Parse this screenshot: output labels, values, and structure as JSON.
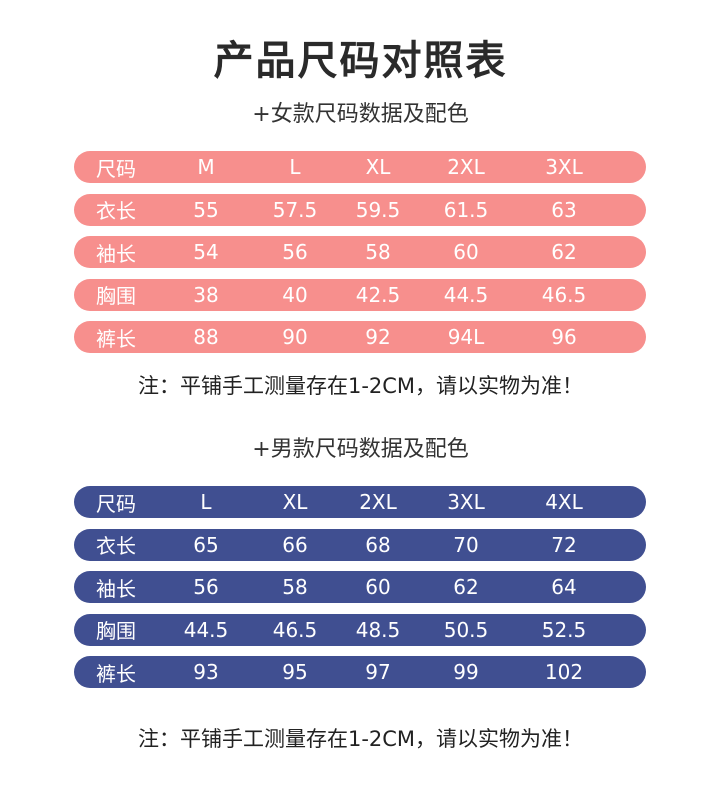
{
  "title": "产品尺码对照表",
  "women": {
    "heading": "+女款尺码数据及配色",
    "color": "#f78f8d",
    "rows": [
      [
        "尺码",
        "M",
        "L",
        "XL",
        "2XL",
        "3XL"
      ],
      [
        "衣长",
        "55",
        "57.5",
        "59.5",
        "61.5",
        "63"
      ],
      [
        "袖长",
        "54",
        "56",
        "58",
        "60",
        "62"
      ],
      [
        "胸围",
        "38",
        "40",
        "42.5",
        "44.5",
        "46.5"
      ],
      [
        "裤长",
        "88",
        "90",
        "92",
        "94L",
        "96"
      ]
    ],
    "note": "注：平铺手工测量存在1-2CM，请以实物为准！"
  },
  "men": {
    "heading": "+男款尺码数据及配色",
    "color": "#404f91",
    "rows": [
      [
        "尺码",
        "L",
        "XL",
        "2XL",
        "3XL",
        "4XL"
      ],
      [
        "衣长",
        "65",
        "66",
        "68",
        "70",
        "72"
      ],
      [
        "袖长",
        "56",
        "58",
        "60",
        "62",
        "64"
      ],
      [
        "胸围",
        "44.5",
        "46.5",
        "48.5",
        "50.5",
        "52.5"
      ],
      [
        "裤长",
        "93",
        "95",
        "97",
        "99",
        "102"
      ]
    ],
    "note": "注：平铺手工测量存在1-2CM，请以实物为准！"
  }
}
